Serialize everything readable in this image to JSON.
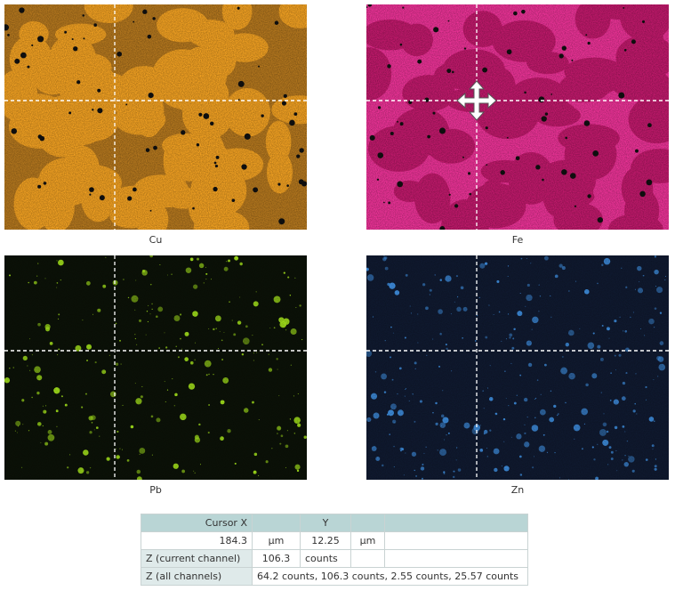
{
  "maps": [
    {
      "label": "Cu"
    },
    {
      "label": "Fe"
    },
    {
      "label": "Pb"
    },
    {
      "label": "Zn"
    }
  ],
  "table": {
    "header": {
      "cursor_x": "Cursor X",
      "cursor_y": "Y"
    },
    "position": {
      "x": "184.3",
      "x_unit": "µm",
      "y": "12.25",
      "y_unit": "µm"
    },
    "current": {
      "label": "Z (current channel)",
      "value": "106.3",
      "unit": "counts"
    },
    "all": {
      "label": "Z (all channels)",
      "value": "64.2 counts, 106.3 counts, 2.55 counts, 25.57 counts"
    }
  }
}
